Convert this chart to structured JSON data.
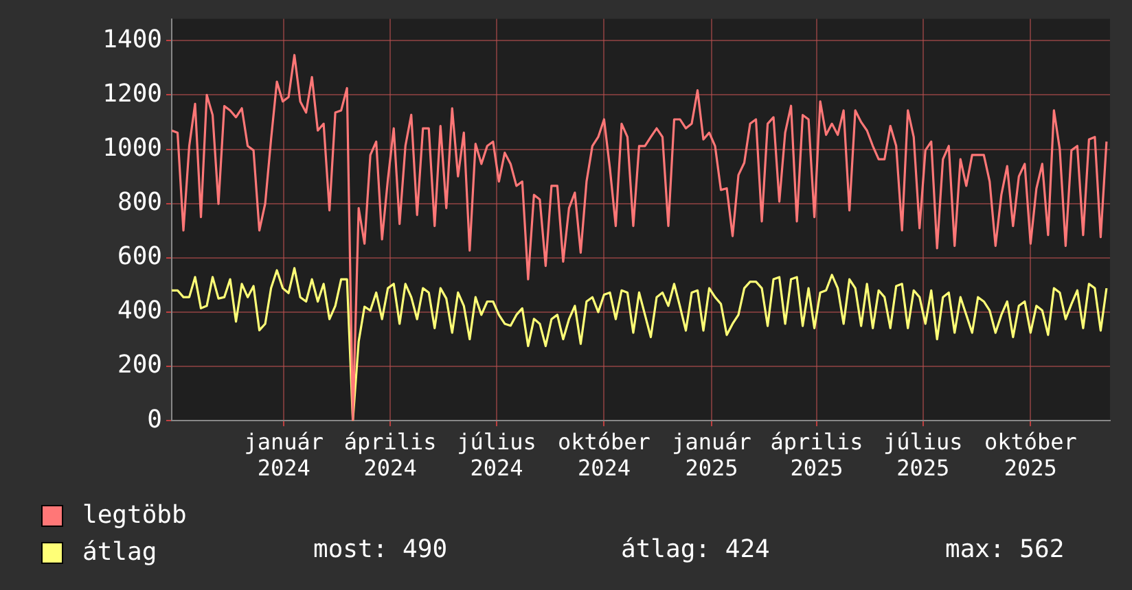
{
  "chart_data": {
    "type": "line",
    "legend": "bottom",
    "grid": true,
    "marker": "none",
    "line_style": "solid",
    "xlim": [
      "2023-09-27",
      "2025-12-08"
    ],
    "xticks": [
      {
        "value": "2024-01-01",
        "label": "január 2024"
      },
      {
        "value": "2024-04-01",
        "label": "április 2024"
      },
      {
        "value": "2024-07-01",
        "label": "július 2024"
      },
      {
        "value": "2024-10-01",
        "label": "október 2024"
      },
      {
        "value": "2025-01-01",
        "label": "január 2025"
      },
      {
        "value": "2025-04-01",
        "label": "április 2025"
      },
      {
        "value": "2025-07-01",
        "label": "július 2025"
      },
      {
        "value": "2025-10-01",
        "label": "október 2025"
      }
    ],
    "ylim": [
      0,
      1480
    ],
    "yticks": [
      0,
      200,
      400,
      600,
      800,
      1000,
      1200,
      1400
    ],
    "annotations": [
      "most: 490",
      "átlag: 424",
      "max: 562"
    ],
    "x": [
      "2023-09-27",
      "2023-10-02",
      "2023-10-07",
      "2023-10-12",
      "2023-10-17",
      "2023-10-22",
      "2023-10-27",
      "2023-11-01",
      "2023-11-06",
      "2023-11-11",
      "2023-11-16",
      "2023-11-21",
      "2023-11-26",
      "2023-12-01",
      "2023-12-06",
      "2023-12-11",
      "2023-12-16",
      "2023-12-21",
      "2023-12-26",
      "2023-12-31",
      "2024-01-05",
      "2024-01-10",
      "2024-01-15",
      "2024-01-20",
      "2024-01-25",
      "2024-01-30",
      "2024-02-04",
      "2024-02-09",
      "2024-02-14",
      "2024-02-19",
      "2024-02-24",
      "2024-02-29",
      "2024-03-05",
      "2024-03-10",
      "2024-03-15",
      "2024-03-20",
      "2024-03-25",
      "2024-03-30",
      "2024-04-04",
      "2024-04-09",
      "2024-04-14",
      "2024-04-19",
      "2024-04-24",
      "2024-04-29",
      "2024-05-04",
      "2024-05-09",
      "2024-05-14",
      "2024-05-19",
      "2024-05-24",
      "2024-05-29",
      "2024-06-03",
      "2024-06-08",
      "2024-06-13",
      "2024-06-18",
      "2024-06-23",
      "2024-06-28",
      "2024-07-03",
      "2024-07-08",
      "2024-07-13",
      "2024-07-18",
      "2024-07-23",
      "2024-07-28",
      "2024-08-02",
      "2024-08-07",
      "2024-08-12",
      "2024-08-17",
      "2024-08-22",
      "2024-08-27",
      "2024-09-01",
      "2024-09-06",
      "2024-09-11",
      "2024-09-16",
      "2024-09-21",
      "2024-09-26",
      "2024-10-01",
      "2024-10-06",
      "2024-10-11",
      "2024-10-16",
      "2024-10-21",
      "2024-10-26",
      "2024-10-31",
      "2024-11-05",
      "2024-11-10",
      "2024-11-15",
      "2024-11-20",
      "2024-11-25",
      "2024-11-30",
      "2024-12-05",
      "2024-12-10",
      "2024-12-15",
      "2024-12-20",
      "2024-12-25",
      "2024-12-30",
      "2025-01-04",
      "2025-01-09",
      "2025-01-14",
      "2025-01-19",
      "2025-01-24",
      "2025-01-29",
      "2025-02-03",
      "2025-02-08",
      "2025-02-13",
      "2025-02-18",
      "2025-02-23",
      "2025-02-28",
      "2025-03-05",
      "2025-03-10",
      "2025-03-15",
      "2025-03-20",
      "2025-03-25",
      "2025-03-30",
      "2025-04-04",
      "2025-04-09",
      "2025-04-14",
      "2025-04-19",
      "2025-04-24",
      "2025-04-29",
      "2025-05-04",
      "2025-05-09",
      "2025-05-14",
      "2025-05-19",
      "2025-05-24",
      "2025-05-29",
      "2025-06-03",
      "2025-06-08",
      "2025-06-13",
      "2025-06-18",
      "2025-06-23",
      "2025-06-28",
      "2025-07-03",
      "2025-07-08",
      "2025-07-13",
      "2025-07-18",
      "2025-07-23",
      "2025-07-28",
      "2025-08-02",
      "2025-08-07",
      "2025-08-12",
      "2025-08-17",
      "2025-08-22",
      "2025-08-27",
      "2025-09-01",
      "2025-09-06",
      "2025-09-11",
      "2025-09-16",
      "2025-09-21",
      "2025-09-26",
      "2025-10-01",
      "2025-10-06",
      "2025-10-11",
      "2025-10-16",
      "2025-10-21",
      "2025-10-26",
      "2025-10-31",
      "2025-11-05",
      "2025-11-10",
      "2025-11-15",
      "2025-11-20",
      "2025-11-25",
      "2025-11-30",
      "2025-12-05"
    ],
    "series": [
      {
        "name": "legtöbb",
        "color": "#ff7777",
        "values": [
          1069,
          1061,
          701,
          1012,
          1167,
          750,
          1200,
          1126,
          799,
          1159,
          1143,
          1118,
          1151,
          1012,
          996,
          701,
          800,
          1036,
          1249,
          1176,
          1192,
          1347,
          1176,
          1135,
          1266,
          1069,
          1094,
          775,
          1135,
          1143,
          1225,
          0,
          783,
          652,
          979,
          1028,
          668,
          889,
          1077,
          725,
          1012,
          1127,
          758,
          1077,
          1077,
          717,
          1086,
          783,
          1151,
          900,
          1061,
          627,
          1020,
          946,
          1012,
          1028,
          881,
          987,
          946,
          865,
          881,
          521,
          832,
          815,
          570,
          865,
          865,
          586,
          783,
          840,
          619,
          881,
          1012,
          1045,
          1110,
          930,
          717,
          1094,
          1045,
          717,
          1012,
          1012,
          1045,
          1077,
          1045,
          717,
          1110,
          1110,
          1077,
          1094,
          1217,
          1036,
          1061,
          1012,
          850,
          856,
          680,
          905,
          950,
          1094,
          1110,
          734,
          1094,
          1118,
          807,
          1061,
          1160,
          734,
          1126,
          1110,
          750,
          1176,
          1053,
          1094,
          1053,
          1143,
          775,
          1143,
          1100,
          1069,
          1012,
          963,
          963,
          1086,
          1012,
          701,
          1143,
          1045,
          709,
          996,
          1028,
          635,
          963,
          1012,
          644,
          963,
          865,
          979,
          979,
          979,
          881,
          644,
          832,
          938,
          717,
          900,
          946,
          652,
          855,
          946,
          684,
          1143,
          1000,
          644,
          996,
          1012,
          684,
          1036,
          1045,
          676,
          1028
        ]
      },
      {
        "name": "átlag",
        "color": "#ffff77",
        "values": [
          480,
          480,
          455,
          455,
          529,
          414,
          423,
          529,
          450,
          455,
          521,
          365,
          504,
          455,
          496,
          333,
          357,
          488,
          554,
          488,
          470,
          562,
          455,
          439,
          521,
          439,
          504,
          374,
          423,
          521,
          521,
          0,
          292,
          420,
          406,
          472,
          374,
          488,
          504,
          357,
          504,
          455,
          374,
          488,
          472,
          341,
          488,
          450,
          324,
          472,
          423,
          300,
          455,
          390,
          439,
          439,
          390,
          357,
          350,
          390,
          414,
          275,
          375,
          357,
          275,
          374,
          390,
          300,
          374,
          423,
          283,
          439,
          455,
          400,
          464,
          472,
          374,
          480,
          472,
          324,
          472,
          390,
          308,
          455,
          472,
          423,
          504,
          420,
          332,
          472,
          480,
          332,
          488,
          455,
          430,
          316,
          357,
          390,
          488,
          512,
          512,
          488,
          349,
          521,
          529,
          357,
          521,
          529,
          349,
          488,
          341,
          472,
          480,
          537,
          488,
          357,
          521,
          488,
          349,
          504,
          341,
          480,
          455,
          341,
          496,
          504,
          341,
          480,
          455,
          357,
          480,
          300,
          455,
          472,
          324,
          455,
          390,
          324,
          455,
          439,
          406,
          324,
          390,
          439,
          308,
          423,
          439,
          324,
          423,
          406,
          316,
          488,
          472,
          374,
          430,
          480,
          341,
          504,
          488,
          332,
          488
        ]
      }
    ]
  }
}
